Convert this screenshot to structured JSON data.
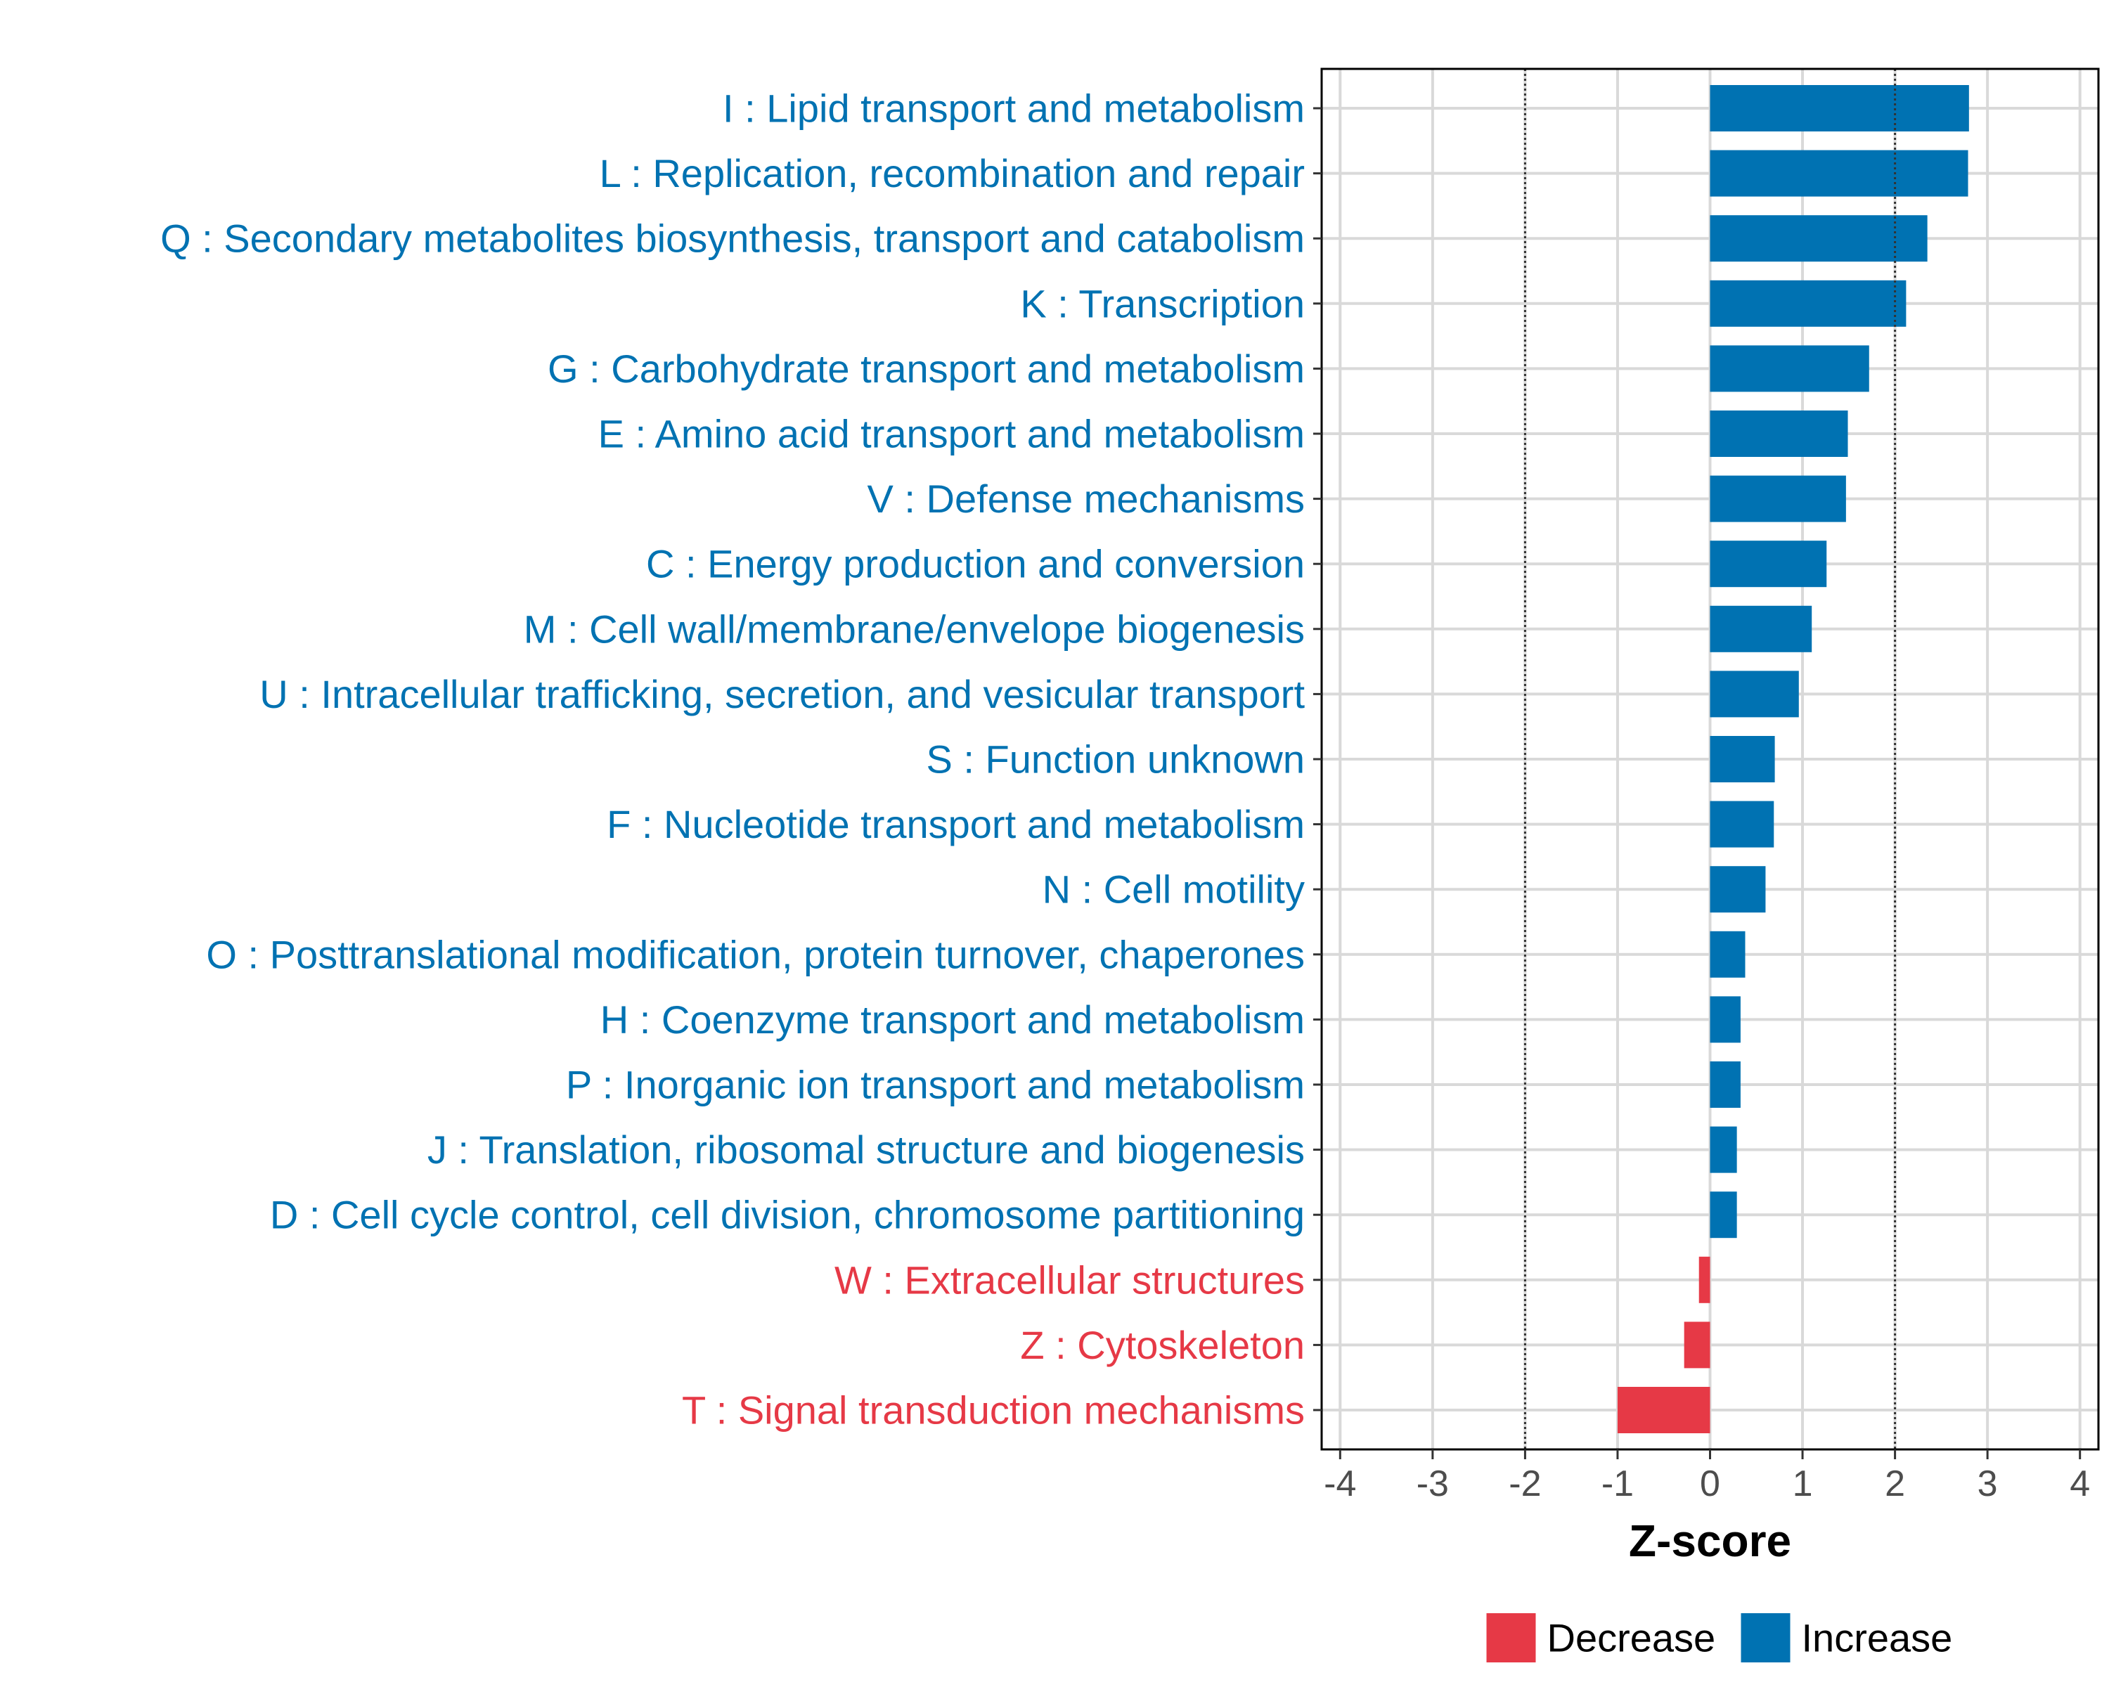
{
  "chart_data": {
    "type": "bar",
    "orientation": "horizontal",
    "xlabel": "Z-score",
    "xlim": [
      -4.2,
      4.2
    ],
    "xticks": [
      -4,
      -3,
      -2,
      -1,
      0,
      1,
      2,
      3,
      4
    ],
    "reference_lines": [
      -2,
      2
    ],
    "grid": true,
    "legend_position": "bottom",
    "colors": {
      "Increase": "#0072b2",
      "Decrease": "#e63946"
    },
    "legend": [
      {
        "name": "Decrease",
        "color": "#e63946"
      },
      {
        "name": "Increase",
        "color": "#0072b2"
      }
    ],
    "categories": [
      {
        "label": "I : Lipid transport and metabolism",
        "value": 2.8,
        "group": "Increase"
      },
      {
        "label": "L : Replication, recombination and repair",
        "value": 2.79,
        "group": "Increase"
      },
      {
        "label": "Q : Secondary metabolites biosynthesis, transport and catabolism",
        "value": 2.35,
        "group": "Increase"
      },
      {
        "label": "K : Transcription",
        "value": 2.12,
        "group": "Increase"
      },
      {
        "label": "G : Carbohydrate transport and metabolism",
        "value": 1.72,
        "group": "Increase"
      },
      {
        "label": "E : Amino acid transport and metabolism",
        "value": 1.49,
        "group": "Increase"
      },
      {
        "label": "V : Defense mechanisms",
        "value": 1.47,
        "group": "Increase"
      },
      {
        "label": "C : Energy production and conversion",
        "value": 1.26,
        "group": "Increase"
      },
      {
        "label": "M : Cell wall/membrane/envelope biogenesis",
        "value": 1.1,
        "group": "Increase"
      },
      {
        "label": "U : Intracellular trafficking, secretion, and vesicular transport",
        "value": 0.96,
        "group": "Increase"
      },
      {
        "label": "S : Function unknown",
        "value": 0.7,
        "group": "Increase"
      },
      {
        "label": "F : Nucleotide transport and metabolism",
        "value": 0.69,
        "group": "Increase"
      },
      {
        "label": "N : Cell motility",
        "value": 0.6,
        "group": "Increase"
      },
      {
        "label": "O : Posttranslational modification, protein turnover, chaperones",
        "value": 0.38,
        "group": "Increase"
      },
      {
        "label": "H : Coenzyme transport and metabolism",
        "value": 0.33,
        "group": "Increase"
      },
      {
        "label": "P : Inorganic ion transport and metabolism",
        "value": 0.33,
        "group": "Increase"
      },
      {
        "label": "J : Translation, ribosomal structure and biogenesis",
        "value": 0.29,
        "group": "Increase"
      },
      {
        "label": "D : Cell cycle control, cell division, chromosome partitioning",
        "value": 0.29,
        "group": "Increase"
      },
      {
        "label": "W : Extracellular structures",
        "value": -0.12,
        "group": "Decrease"
      },
      {
        "label": "Z : Cytoskeleton",
        "value": -0.28,
        "group": "Decrease"
      },
      {
        "label": "T : Signal transduction mechanisms",
        "value": -1.0,
        "group": "Decrease"
      }
    ]
  }
}
